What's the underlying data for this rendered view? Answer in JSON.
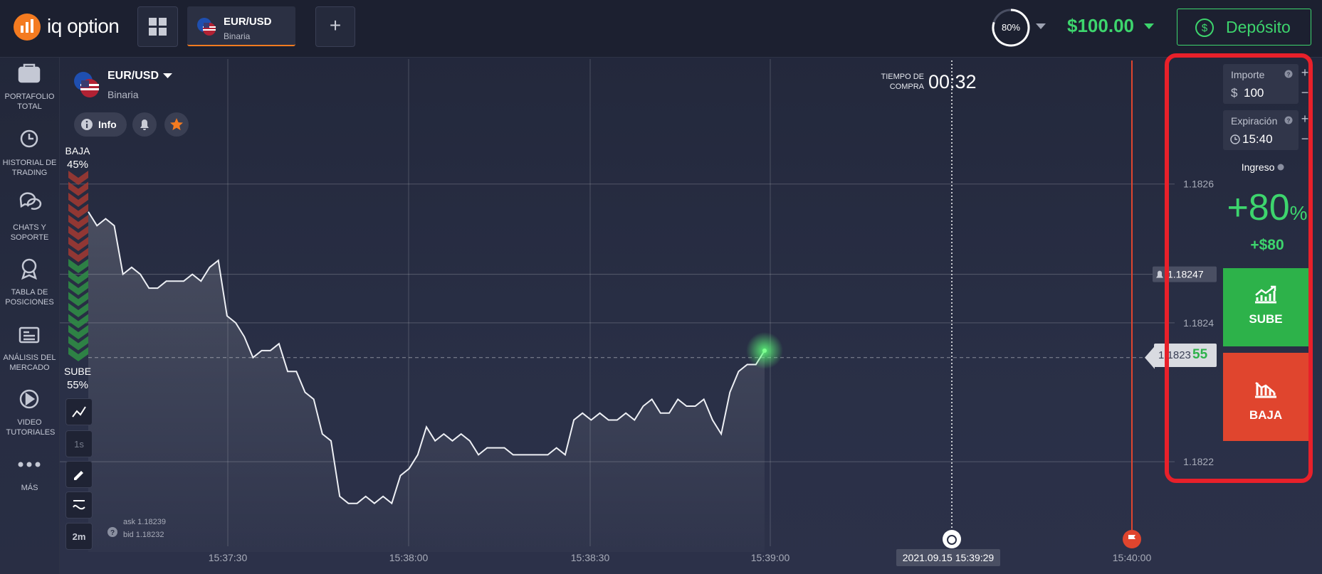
{
  "header": {
    "logo": "iq option",
    "tab": {
      "symbol": "EUR/USD",
      "mode": "Binaria"
    },
    "add_tab": "+",
    "level": "80%",
    "balance": "$100.00",
    "deposit": "Depósito"
  },
  "sidebar": [
    "PORTAFOLIO TOTAL",
    "HISTORIAL DE TRADING",
    "CHATS Y SOPORTE",
    "TABLA DE POSICIONES",
    "ANÁLISIS DEL MERCADO",
    "VIDEO TUTORIALES",
    "MÁS"
  ],
  "asset": {
    "symbol": "EUR/USD",
    "mode": "Binaria",
    "info": "Info"
  },
  "sentiment": {
    "down_label": "BAJA",
    "down_pct": "45%",
    "up_label": "SUBE",
    "up_pct": "55%"
  },
  "tools": [
    "1s",
    "2m"
  ],
  "quote": {
    "ask": "ask 1.18239",
    "bid": "bid 1.18232"
  },
  "timer": {
    "label": "TIEMPO DE COMPRA",
    "value": "00:32"
  },
  "chart": {
    "type": "line",
    "ylim": [
      1.18207,
      1.18278
    ],
    "yticks": [
      1.1822,
      1.1824,
      1.1826
    ],
    "x_labels": [
      "15:37:30",
      "15:38:00",
      "15:38:30",
      "15:39:00",
      "15:40:00"
    ],
    "values": [
      1.18256,
      1.18254,
      1.18255,
      1.18254,
      1.18247,
      1.18248,
      1.18247,
      1.18245,
      1.18245,
      1.18246,
      1.18246,
      1.18246,
      1.18247,
      1.18246,
      1.18248,
      1.18249,
      1.18241,
      1.1824,
      1.18238,
      1.18235,
      1.18236,
      1.18236,
      1.18237,
      1.18233,
      1.18233,
      1.1823,
      1.18229,
      1.18224,
      1.18223,
      1.18215,
      1.18214,
      1.18214,
      1.18215,
      1.18214,
      1.18215,
      1.18214,
      1.18218,
      1.18219,
      1.18221,
      1.18225,
      1.18223,
      1.18224,
      1.18223,
      1.18224,
      1.18223,
      1.18221,
      1.18222,
      1.18222,
      1.18222,
      1.18221,
      1.18221,
      1.18221,
      1.18221,
      1.18221,
      1.18222,
      1.18221,
      1.18226,
      1.18227,
      1.18226,
      1.18227,
      1.18226,
      1.18226,
      1.18227,
      1.18226,
      1.18228,
      1.18229,
      1.18227,
      1.18227,
      1.18229,
      1.18228,
      1.18228,
      1.18229,
      1.18226,
      1.18224,
      1.1823,
      1.18233,
      1.18234,
      1.18234,
      1.18236
    ],
    "alert_price": 1.18247,
    "current_price": 1.18235,
    "current_price_label": [
      "1.1823",
      "55"
    ],
    "expiry_timestamp": "2021.09.15 15:39:29"
  },
  "trade": {
    "amount_label": "Importe",
    "currency": "$",
    "amount": "100",
    "expiry_label": "Expiración",
    "expiry": "15:40",
    "income_label": "Ingreso",
    "payout": "+80",
    "payout_unit": "%",
    "profit": "+$80",
    "up": "SUBE",
    "down": "BAJA"
  }
}
